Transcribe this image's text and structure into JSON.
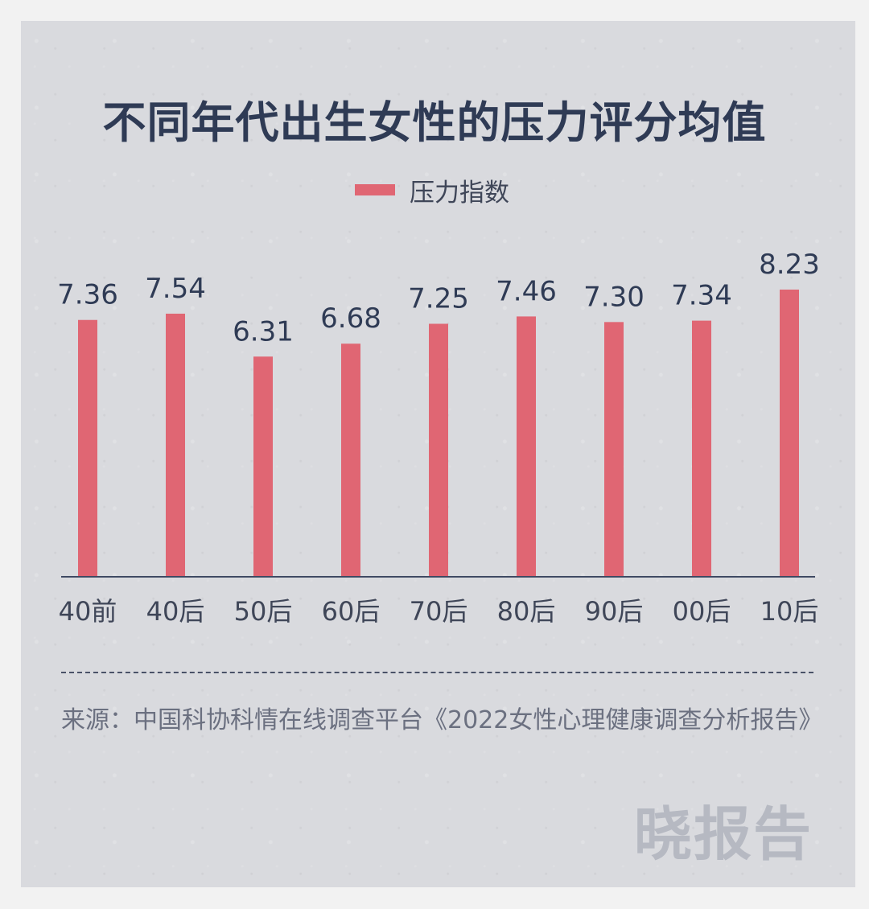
{
  "title": "不同年代出生女性的压力评分均值",
  "legend": {
    "label": "压力指数",
    "color": "#e06673"
  },
  "chart_data": {
    "type": "bar",
    "title": "不同年代出生女性的压力评分均值",
    "categories": [
      "40前",
      "40后",
      "50后",
      "60后",
      "70后",
      "80后",
      "90后",
      "00后",
      "10后"
    ],
    "series": [
      {
        "name": "压力指数",
        "values": [
          7.36,
          7.54,
          6.31,
          6.68,
          7.25,
          7.46,
          7.3,
          7.34,
          8.23
        ]
      }
    ],
    "value_labels": [
      "7.36",
      "7.54",
      "6.31",
      "6.68",
      "7.25",
      "7.46",
      "7.30",
      "7.34",
      "8.23"
    ],
    "xlabel": "",
    "ylabel": "",
    "ylim": [
      0,
      8.23
    ],
    "grid": false,
    "legend_position": "top-center",
    "bar_color": "#e06673",
    "axis_color": "#3f4a63"
  },
  "source": {
    "prefix": "来源：",
    "text": "中国科协科情在线调查平台《2022女性心理健康调查分析报告》"
  },
  "watermark": "晓报告"
}
